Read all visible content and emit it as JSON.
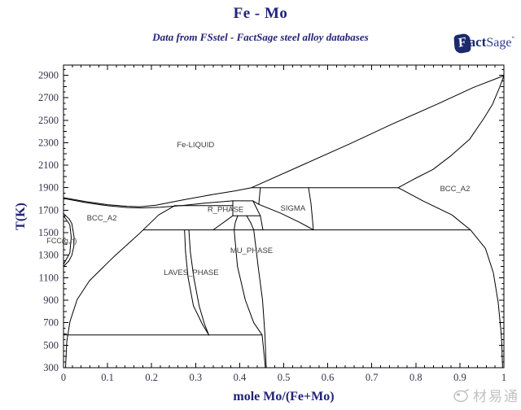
{
  "header": {
    "title": "Fe - Mo",
    "subtitle": "Data from FSstel - FactSage steel alloy databases",
    "logo": {
      "flag_letter": "F",
      "fact": "act",
      "sage": "Sage",
      "mark": "”"
    }
  },
  "watermark": {
    "text": "材易通"
  },
  "colors": {
    "accent_navy": "#232379",
    "line": "#000000",
    "tick_label": "#33334a",
    "phase_label": "#3d3d3d",
    "watermark_gray": "#b3b3b3"
  },
  "chart_data": {
    "type": "line",
    "title": "Fe - Mo",
    "xlabel": "mole Mo/(Fe+Mo)",
    "ylabel": "T(K)",
    "xlim": [
      0,
      1
    ],
    "ylim": [
      300,
      2990
    ],
    "grid": false,
    "x_tick_labels": [
      "0",
      "0.1",
      "0.2",
      "0.3",
      "0.4",
      "0.5",
      "0.6",
      "0.7",
      "0.8",
      "0.9",
      "1"
    ],
    "x_major_step": 0.1,
    "x_minor_step": 0.02,
    "y_label_ticks": [
      300,
      500,
      700,
      900,
      1100,
      1300,
      1500,
      1700,
      1900,
      2100,
      2300,
      2500,
      2700,
      2900
    ],
    "y_mid_step": 100,
    "y_minor_step": 50,
    "phase_labels": [
      {
        "text": "Fe-LIQUID",
        "x": 0.3,
        "T": 2280
      },
      {
        "text": "BCC_A2",
        "x": 0.087,
        "T": 1630
      },
      {
        "text": "BCC_A2",
        "x": 0.889,
        "T": 1890
      },
      {
        "text": "R_PHASE",
        "x": 0.368,
        "T": 1705
      },
      {
        "text": "SIGMA",
        "x": 0.521,
        "T": 1716
      },
      {
        "text": "MU_PHASE",
        "x": 0.427,
        "T": 1340
      },
      {
        "text": "LAVES_PHASE",
        "x": 0.29,
        "T": 1145
      },
      {
        "text": "FCC(g,n)",
        "x": -0.004,
        "T": 1427
      }
    ],
    "series": [
      {
        "name": "liquidus-fe",
        "points": [
          [
            0,
            1811
          ],
          [
            0.05,
            1777
          ],
          [
            0.1,
            1749
          ],
          [
            0.145,
            1735
          ],
          [
            0.174,
            1731
          ],
          [
            0.21,
            1744
          ],
          [
            0.27,
            1790
          ],
          [
            0.34,
            1840
          ],
          [
            0.39,
            1872
          ],
          [
            0.427,
            1900
          ]
        ]
      },
      {
        "name": "solidus-fe",
        "points": [
          [
            0,
            1805
          ],
          [
            0.05,
            1768
          ],
          [
            0.1,
            1740
          ],
          [
            0.145,
            1724
          ],
          [
            0.177,
            1720
          ],
          [
            0.22,
            1726
          ],
          [
            0.27,
            1742
          ],
          [
            0.32,
            1762
          ],
          [
            0.3845,
            1783
          ]
        ]
      },
      {
        "name": "liquidus-mo",
        "points": [
          [
            0.427,
            1900
          ],
          [
            0.55,
            2115
          ],
          [
            0.65,
            2290
          ],
          [
            0.743,
            2460
          ],
          [
            0.85,
            2645
          ],
          [
            0.93,
            2790
          ],
          [
            1.0,
            2896
          ]
        ]
      },
      {
        "name": "solidus-mo",
        "points": [
          [
            0.76,
            1900
          ],
          [
            0.8,
            1985
          ],
          [
            0.839,
            2062
          ],
          [
            0.88,
            2185
          ],
          [
            0.922,
            2330
          ],
          [
            0.955,
            2520
          ],
          [
            0.974,
            2640
          ],
          [
            0.99,
            2790
          ],
          [
            1.0,
            2896
          ]
        ]
      },
      {
        "name": "solvus-mo",
        "points": [
          [
            0.76,
            1900
          ],
          [
            0.817,
            1781
          ],
          [
            0.882,
            1658
          ],
          [
            0.924,
            1525
          ],
          [
            0.958,
            1361
          ],
          [
            0.976,
            1145
          ],
          [
            0.987,
            878
          ],
          [
            0.993,
            640
          ],
          [
            0.995,
            531
          ],
          [
            0.997,
            300
          ]
        ]
      },
      {
        "name": "alpha-solvus",
        "points": [
          [
            0.253,
            1741
          ],
          [
            0.216,
            1658
          ],
          [
            0.17,
            1484
          ],
          [
            0.115,
            1289
          ],
          [
            0.059,
            1073
          ],
          [
            0.031,
            907
          ],
          [
            0.0148,
            712
          ],
          [
            0.0074,
            531
          ],
          [
            0.0046,
            300
          ]
        ]
      },
      {
        "name": "invariant-1900K",
        "points": [
          [
            0.427,
            1900
          ],
          [
            0.76,
            1900
          ]
        ]
      },
      {
        "name": "invariant-1741K",
        "points": [
          [
            0.253,
            1741
          ],
          [
            0.3845,
            1741
          ]
        ]
      },
      {
        "name": "invariant-1525K",
        "points": [
          [
            0.181,
            1525
          ],
          [
            0.924,
            1525
          ]
        ]
      },
      {
        "name": "invariant-591K",
        "points": [
          [
            0,
            591
          ],
          [
            0.451,
            591
          ]
        ]
      },
      {
        "name": "r-phase-top",
        "points": [
          [
            0.3845,
            1783
          ],
          [
            0.4301,
            1783
          ]
        ]
      },
      {
        "name": "r-phase-left",
        "points": [
          [
            0.3845,
            1783
          ],
          [
            0.3845,
            1651
          ]
        ]
      },
      {
        "name": "r-phase-bottom",
        "points": [
          [
            0.3845,
            1651
          ],
          [
            0.447,
            1651
          ]
        ]
      },
      {
        "name": "r-phase-right",
        "points": [
          [
            0.4301,
            1783
          ],
          [
            0.447,
            1651
          ]
        ]
      },
      {
        "name": "r-sigma-link",
        "points": [
          [
            0.4301,
            1783
          ],
          [
            0.4435,
            1752
          ]
        ]
      },
      {
        "name": "bcc-r-slant",
        "points": [
          [
            0.34,
            1525
          ],
          [
            0.3845,
            1651
          ]
        ]
      },
      {
        "name": "sigma-left",
        "points": [
          [
            0.447,
            1900
          ],
          [
            0.4435,
            1752
          ]
        ]
      },
      {
        "name": "sigma-bottom",
        "points": [
          [
            0.4435,
            1752
          ],
          [
            0.494,
            1672
          ],
          [
            0.536,
            1592
          ],
          [
            0.5675,
            1526
          ]
        ]
      },
      {
        "name": "sigma-right",
        "points": [
          [
            0.5564,
            1900
          ],
          [
            0.562,
            1760
          ],
          [
            0.5675,
            1526
          ]
        ]
      },
      {
        "name": "r-drop",
        "points": [
          [
            0.447,
            1651
          ],
          [
            0.4528,
            1525
          ]
        ]
      },
      {
        "name": "mu-cap-left",
        "points": [
          [
            0.3956,
            1651
          ],
          [
            0.39,
            1590
          ],
          [
            0.3875,
            1525
          ]
        ]
      },
      {
        "name": "mu-cap-right",
        "points": [
          [
            0.4159,
            1651
          ],
          [
            0.425,
            1590
          ],
          [
            0.4319,
            1525
          ]
        ]
      },
      {
        "name": "mu-left",
        "points": [
          [
            0.3875,
            1525
          ],
          [
            0.395,
            1200
          ],
          [
            0.413,
            900
          ],
          [
            0.432,
            700
          ],
          [
            0.451,
            591
          ],
          [
            0.455,
            430
          ],
          [
            0.4584,
            300
          ]
        ]
      },
      {
        "name": "mu-right",
        "points": [
          [
            0.4319,
            1525
          ],
          [
            0.442,
            1200
          ],
          [
            0.452,
            900
          ],
          [
            0.4575,
            591
          ],
          [
            0.459,
            430
          ],
          [
            0.4602,
            300
          ]
        ]
      },
      {
        "name": "laves-left",
        "points": [
          [
            0.2748,
            1525
          ],
          [
            0.277,
            1330
          ],
          [
            0.283,
            1100
          ],
          [
            0.295,
            850
          ],
          [
            0.315,
            690
          ],
          [
            0.33,
            591
          ]
        ]
      },
      {
        "name": "laves-right",
        "points": [
          [
            0.2847,
            1525
          ],
          [
            0.288,
            1330
          ],
          [
            0.296,
            1100
          ],
          [
            0.308,
            850
          ],
          [
            0.32,
            690
          ],
          [
            0.33,
            591
          ]
        ]
      },
      {
        "name": "fcc-loop-outer",
        "points": [
          [
            0,
            1670
          ],
          [
            0.013,
            1622
          ],
          [
            0.019,
            1580
          ],
          [
            0.024,
            1460
          ],
          [
            0.0235,
            1380
          ],
          [
            0.019,
            1300
          ],
          [
            0.012,
            1248
          ],
          [
            0,
            1200
          ]
        ]
      },
      {
        "name": "fcc-loop-inner",
        "points": [
          [
            0,
            1652
          ],
          [
            0.0145,
            1570
          ],
          [
            0.0175,
            1460
          ],
          [
            0.0145,
            1320
          ],
          [
            0,
            1218
          ]
        ]
      }
    ]
  }
}
